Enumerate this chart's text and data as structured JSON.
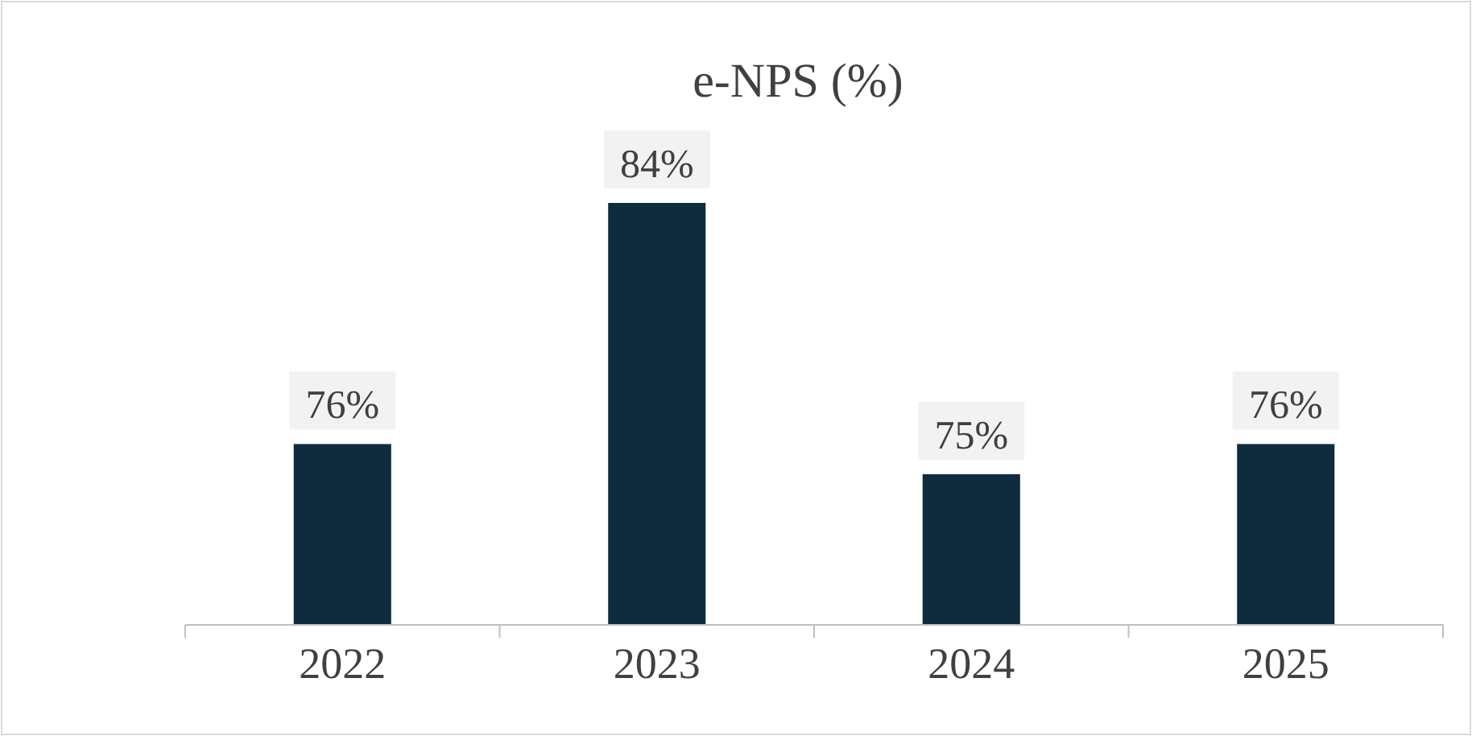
{
  "chart_data": {
    "type": "bar",
    "title": "e-NPS (%)",
    "categories": [
      "2022",
      "2023",
      "2024",
      "2025"
    ],
    "values": [
      76,
      84,
      75,
      76
    ],
    "value_labels": [
      "76%",
      "84%",
      "75%",
      "76%"
    ],
    "color": "#0e2c3d",
    "ylim": [
      70,
      84
    ],
    "tick_labels": "x",
    "grid": false
  }
}
